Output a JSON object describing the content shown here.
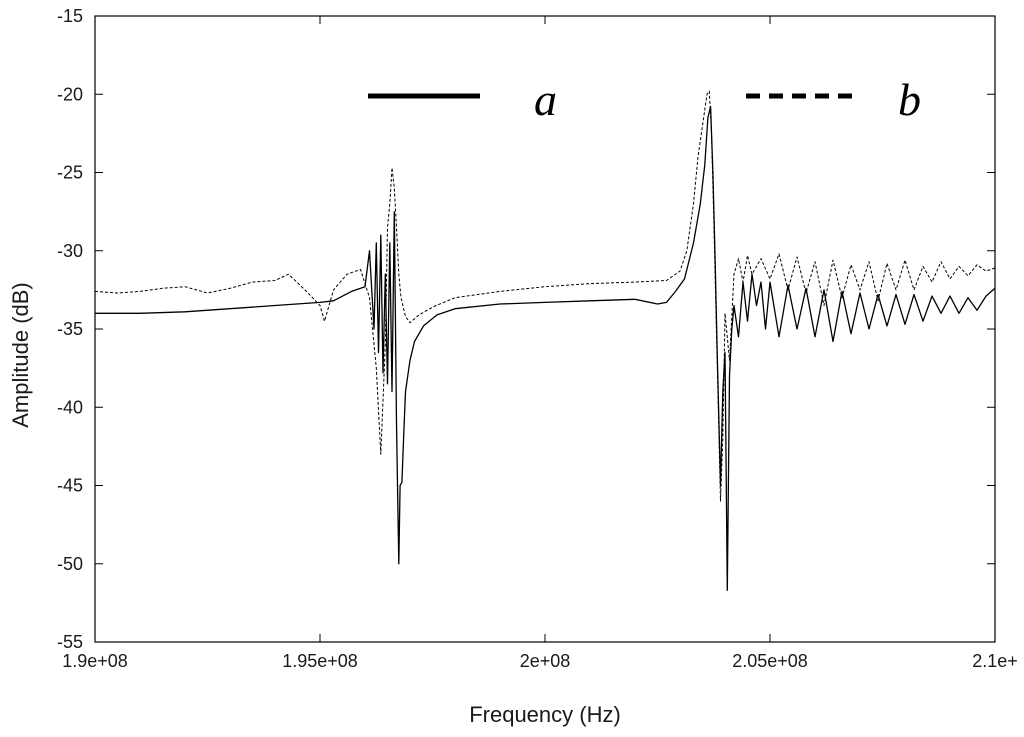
{
  "chart_data": {
    "type": "line",
    "title": "",
    "xlabel": "Frequency (Hz)",
    "ylabel": "Amplitude (dB)",
    "xlim": [
      190000000,
      210000000
    ],
    "ylim": [
      -55,
      -15
    ],
    "x_ticks": [
      {
        "value": 190000000,
        "label": "1.9e+08"
      },
      {
        "value": 195000000,
        "label": "1.95e+08"
      },
      {
        "value": 200000000,
        "label": "2e+08"
      },
      {
        "value": 205000000,
        "label": "2.05e+08"
      },
      {
        "value": 210000000,
        "label": "2.1e+"
      }
    ],
    "y_ticks": [
      {
        "value": -15,
        "label": "-15"
      },
      {
        "value": -20,
        "label": "-20"
      },
      {
        "value": -25,
        "label": "-25"
      },
      {
        "value": -30,
        "label": "-30"
      },
      {
        "value": -35,
        "label": "-35"
      },
      {
        "value": -40,
        "label": "-40"
      },
      {
        "value": -45,
        "label": "-45"
      },
      {
        "value": -50,
        "label": "-50"
      },
      {
        "value": -55,
        "label": "-55"
      }
    ],
    "grid": false,
    "legend_position": "top",
    "series": [
      {
        "name": "a",
        "style": "solid",
        "color": "#000000",
        "points": [
          [
            190000000,
            -34.0
          ],
          [
            191000000,
            -34.0
          ],
          [
            192000000,
            -33.9
          ],
          [
            193000000,
            -33.7
          ],
          [
            194000000,
            -33.5
          ],
          [
            195000000,
            -33.3
          ],
          [
            195300000,
            -33.2
          ],
          [
            195700000,
            -32.6
          ],
          [
            196000000,
            -32.3
          ],
          [
            196100000,
            -30.0
          ],
          [
            196200000,
            -35.0
          ],
          [
            196250000,
            -29.5
          ],
          [
            196300000,
            -36.5
          ],
          [
            196350000,
            -29.0
          ],
          [
            196400000,
            -37.8
          ],
          [
            196450000,
            -31.5
          ],
          [
            196500000,
            -38.5
          ],
          [
            196550000,
            -29.5
          ],
          [
            196600000,
            -39.0
          ],
          [
            196650000,
            -27.5
          ],
          [
            196700000,
            -41.0
          ],
          [
            196750000,
            -50.0
          ],
          [
            196780000,
            -45.0
          ],
          [
            196820000,
            -44.8
          ],
          [
            196860000,
            -41.8
          ],
          [
            196900000,
            -39.0
          ],
          [
            197000000,
            -37.0
          ],
          [
            197100000,
            -35.8
          ],
          [
            197300000,
            -34.8
          ],
          [
            197600000,
            -34.1
          ],
          [
            198000000,
            -33.7
          ],
          [
            199000000,
            -33.4
          ],
          [
            200000000,
            -33.3
          ],
          [
            201000000,
            -33.2
          ],
          [
            202000000,
            -33.1
          ],
          [
            202500000,
            -33.4
          ],
          [
            202700000,
            -33.3
          ],
          [
            202900000,
            -32.6
          ],
          [
            203100000,
            -31.8
          ],
          [
            203300000,
            -29.5
          ],
          [
            203450000,
            -27.0
          ],
          [
            203550000,
            -24.5
          ],
          [
            203620000,
            -21.5
          ],
          [
            203680000,
            -20.8
          ],
          [
            203730000,
            -25.0
          ],
          [
            203780000,
            -30.5
          ],
          [
            203830000,
            -37.0
          ],
          [
            203900000,
            -45.0
          ],
          [
            203950000,
            -39.0
          ],
          [
            204000000,
            -36.5
          ],
          [
            204050000,
            -51.7
          ],
          [
            204100000,
            -38.0
          ],
          [
            204150000,
            -35.0
          ],
          [
            204200000,
            -33.5
          ],
          [
            204300000,
            -35.5
          ],
          [
            204400000,
            -32.0
          ],
          [
            204500000,
            -34.5
          ],
          [
            204600000,
            -31.5
          ],
          [
            204700000,
            -33.5
          ],
          [
            204800000,
            -32.0
          ],
          [
            204900000,
            -35.0
          ],
          [
            205000000,
            -32.0
          ],
          [
            205200000,
            -35.5
          ],
          [
            205400000,
            -32.2
          ],
          [
            205600000,
            -35.0
          ],
          [
            205800000,
            -32.4
          ],
          [
            206000000,
            -35.5
          ],
          [
            206200000,
            -32.5
          ],
          [
            206400000,
            -35.8
          ],
          [
            206600000,
            -32.6
          ],
          [
            206800000,
            -35.3
          ],
          [
            207000000,
            -32.7
          ],
          [
            207200000,
            -35.0
          ],
          [
            207400000,
            -32.8
          ],
          [
            207600000,
            -34.8
          ],
          [
            207800000,
            -32.8
          ],
          [
            208000000,
            -34.7
          ],
          [
            208200000,
            -32.8
          ],
          [
            208400000,
            -34.5
          ],
          [
            208600000,
            -32.9
          ],
          [
            208800000,
            -34.0
          ],
          [
            209000000,
            -32.9
          ],
          [
            209200000,
            -34.0
          ],
          [
            209400000,
            -33.0
          ],
          [
            209600000,
            -33.8
          ],
          [
            209800000,
            -32.9
          ],
          [
            210000000,
            -32.4
          ]
        ]
      },
      {
        "name": "b",
        "style": "dashed",
        "color": "#000000",
        "points": [
          [
            190000000,
            -32.6
          ],
          [
            190500000,
            -32.7
          ],
          [
            191000000,
            -32.6
          ],
          [
            191500000,
            -32.4
          ],
          [
            192000000,
            -32.3
          ],
          [
            192500000,
            -32.7
          ],
          [
            193000000,
            -32.4
          ],
          [
            193500000,
            -32.0
          ],
          [
            194000000,
            -31.9
          ],
          [
            194300000,
            -31.5
          ],
          [
            194700000,
            -32.6
          ],
          [
            195000000,
            -33.5
          ],
          [
            195100000,
            -34.5
          ],
          [
            195300000,
            -32.5
          ],
          [
            195600000,
            -31.5
          ],
          [
            195900000,
            -31.2
          ],
          [
            196100000,
            -33.0
          ],
          [
            196250000,
            -37.5
          ],
          [
            196350000,
            -43.0
          ],
          [
            196450000,
            -36.0
          ],
          [
            196500000,
            -28.5
          ],
          [
            196550000,
            -27.0
          ],
          [
            196600000,
            -24.7
          ],
          [
            196650000,
            -26.0
          ],
          [
            196700000,
            -28.5
          ],
          [
            196750000,
            -31.5
          ],
          [
            196800000,
            -33.0
          ],
          [
            196900000,
            -34.2
          ],
          [
            197000000,
            -34.6
          ],
          [
            197200000,
            -34.1
          ],
          [
            197500000,
            -33.6
          ],
          [
            198000000,
            -33.0
          ],
          [
            199000000,
            -32.6
          ],
          [
            200000000,
            -32.3
          ],
          [
            201000000,
            -32.1
          ],
          [
            202000000,
            -32.0
          ],
          [
            202700000,
            -31.9
          ],
          [
            203000000,
            -31.3
          ],
          [
            203150000,
            -30.0
          ],
          [
            203300000,
            -27.0
          ],
          [
            203400000,
            -24.0
          ],
          [
            203500000,
            -22.0
          ],
          [
            203600000,
            -20.0
          ],
          [
            203650000,
            -19.8
          ],
          [
            203700000,
            -22.5
          ],
          [
            203750000,
            -28.0
          ],
          [
            203800000,
            -34.0
          ],
          [
            203850000,
            -40.0
          ],
          [
            203900000,
            -46.0
          ],
          [
            203950000,
            -42.0
          ],
          [
            204000000,
            -34.0
          ],
          [
            204100000,
            -37.0
          ],
          [
            204200000,
            -31.5
          ],
          [
            204300000,
            -30.5
          ],
          [
            204400000,
            -32.0
          ],
          [
            204500000,
            -30.3
          ],
          [
            204600000,
            -31.5
          ],
          [
            204800000,
            -30.5
          ],
          [
            205000000,
            -31.8
          ],
          [
            205200000,
            -30.2
          ],
          [
            205400000,
            -32.5
          ],
          [
            205600000,
            -30.4
          ],
          [
            205800000,
            -32.7
          ],
          [
            206000000,
            -30.7
          ],
          [
            206200000,
            -33.5
          ],
          [
            206400000,
            -30.6
          ],
          [
            206600000,
            -33.0
          ],
          [
            206800000,
            -30.9
          ],
          [
            207000000,
            -32.5
          ],
          [
            207200000,
            -30.7
          ],
          [
            207400000,
            -33.2
          ],
          [
            207600000,
            -30.8
          ],
          [
            207800000,
            -32.5
          ],
          [
            208000000,
            -30.6
          ],
          [
            208200000,
            -32.5
          ],
          [
            208400000,
            -31.0
          ],
          [
            208600000,
            -32.0
          ],
          [
            208800000,
            -30.7
          ],
          [
            209000000,
            -31.8
          ],
          [
            209200000,
            -31.0
          ],
          [
            209400000,
            -31.6
          ],
          [
            209600000,
            -30.9
          ],
          [
            209800000,
            -31.3
          ],
          [
            210000000,
            -31.1
          ]
        ]
      }
    ]
  }
}
